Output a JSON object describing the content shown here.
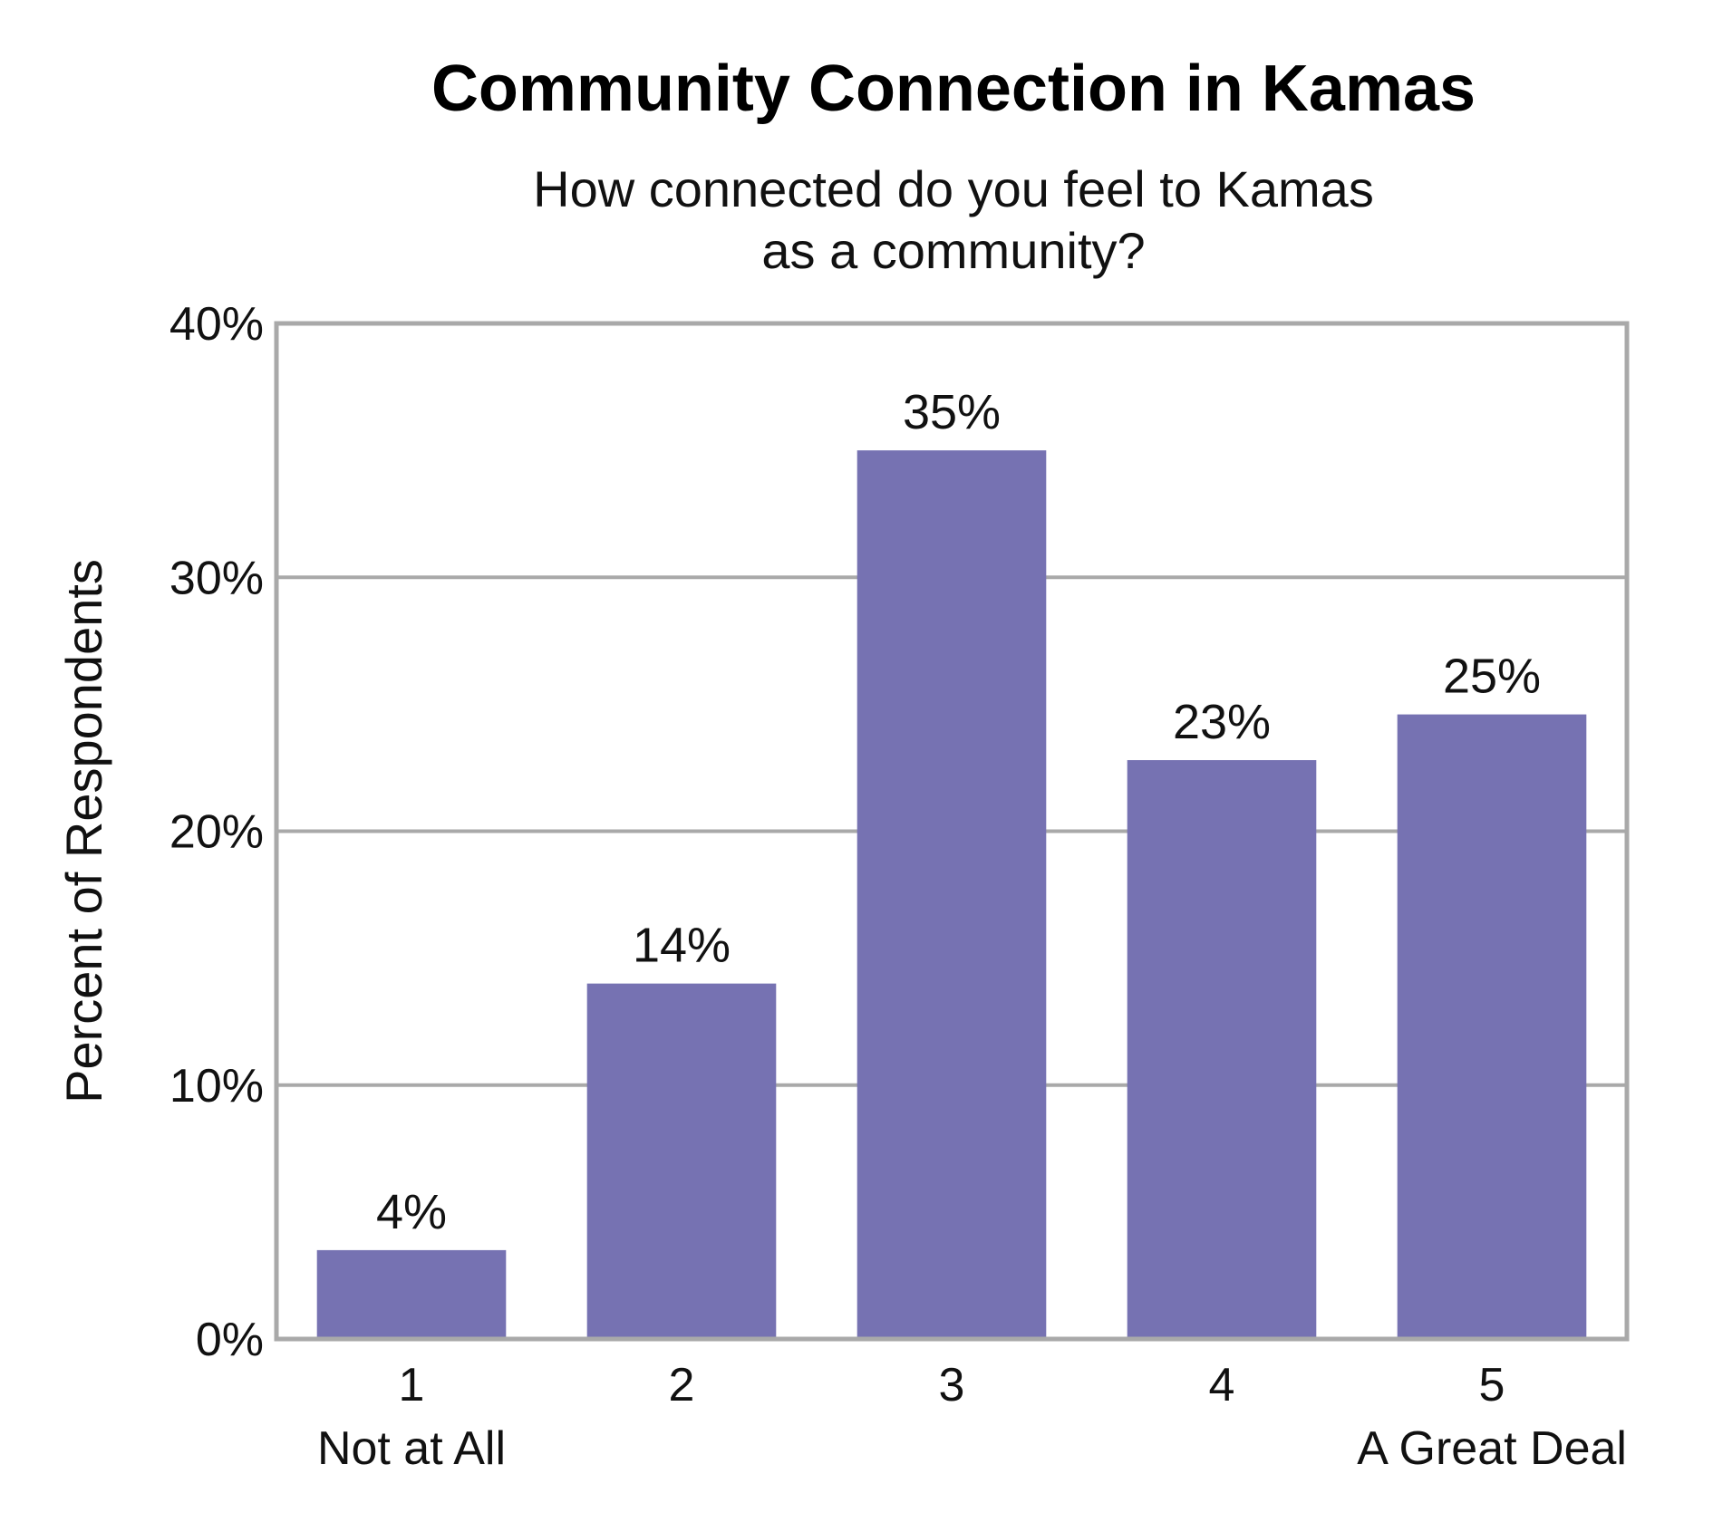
{
  "chart_data": {
    "type": "bar",
    "title": "Community Connection in Kamas",
    "subtitle_lines": [
      "How connected do you feel to Kamas",
      "as a community?"
    ],
    "ylabel": "Percent of Respondents",
    "xlabel": "",
    "categories": [
      "1",
      "2",
      "3",
      "4",
      "5"
    ],
    "category_sublabels": [
      "Not at All",
      "",
      "",
      "",
      "A Great Deal"
    ],
    "values": [
      3.5,
      14,
      35,
      22.8,
      24.6
    ],
    "data_labels": [
      "4%",
      "14%",
      "35%",
      "23%",
      "25%"
    ],
    "ylim": [
      0,
      40
    ],
    "yticks": [
      0,
      10,
      20,
      30,
      40
    ],
    "ytick_labels": [
      "0%",
      "10%",
      "20%",
      "30%",
      "40%"
    ],
    "grid": true,
    "colors": {
      "bar": "#7672b2",
      "grid": "#a9a9a9",
      "frame": "#a9a9a9"
    }
  }
}
